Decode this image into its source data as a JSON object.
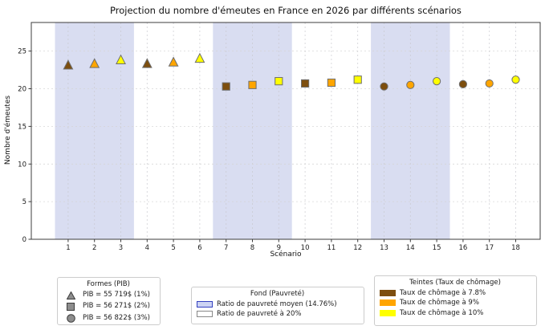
{
  "title": "Projection du nombre d'émeutes en France en 2026 par différents scénarios",
  "chart_data": {
    "type": "scatter",
    "title": "Projection du nombre d'émeutes en France en 2026 par différents scénarios",
    "xlabel": "Scénario",
    "ylabel": "Nombre d'émeutes",
    "xlim": [
      -0.4,
      18.93
    ],
    "ylim": [
      0,
      28.8
    ],
    "xticks": [
      1,
      2,
      3,
      4,
      5,
      6,
      7,
      8,
      9,
      10,
      11,
      12,
      13,
      14,
      15,
      16,
      17,
      18
    ],
    "yticks": [
      0,
      5,
      10,
      15,
      20,
      25
    ],
    "grid": true,
    "legend_position": "below-figure",
    "band_color": "#d9ddf1",
    "bands": [
      [
        0.5,
        3.5
      ],
      [
        6.5,
        9.5
      ],
      [
        12.5,
        15.5
      ]
    ],
    "tint_colors": {
      "brown": "#7d4e0e",
      "orange": "#ffa500",
      "yellow": "#ffff00"
    },
    "points": [
      {
        "x": 1,
        "y": 23.1,
        "shape": "triangle",
        "color": "#7d4e0e"
      },
      {
        "x": 2,
        "y": 23.3,
        "shape": "triangle",
        "color": "#ffa500"
      },
      {
        "x": 3,
        "y": 23.8,
        "shape": "triangle",
        "color": "#ffff00"
      },
      {
        "x": 4,
        "y": 23.3,
        "shape": "triangle",
        "color": "#7d4e0e"
      },
      {
        "x": 5,
        "y": 23.5,
        "shape": "triangle",
        "color": "#ffa500"
      },
      {
        "x": 6,
        "y": 24.0,
        "shape": "triangle",
        "color": "#ffff00"
      },
      {
        "x": 7,
        "y": 20.3,
        "shape": "square",
        "color": "#7d4e0e"
      },
      {
        "x": 8,
        "y": 20.5,
        "shape": "square",
        "color": "#ffa500"
      },
      {
        "x": 9,
        "y": 21.0,
        "shape": "square",
        "color": "#ffff00"
      },
      {
        "x": 10,
        "y": 20.7,
        "shape": "square",
        "color": "#7d4e0e"
      },
      {
        "x": 11,
        "y": 20.8,
        "shape": "square",
        "color": "#ffa500"
      },
      {
        "x": 12,
        "y": 21.2,
        "shape": "square",
        "color": "#ffff00"
      },
      {
        "x": 13,
        "y": 20.3,
        "shape": "circle",
        "color": "#7d4e0e"
      },
      {
        "x": 14,
        "y": 20.5,
        "shape": "circle",
        "color": "#ffa500"
      },
      {
        "x": 15,
        "y": 21.0,
        "shape": "circle",
        "color": "#ffff00"
      },
      {
        "x": 16,
        "y": 20.6,
        "shape": "circle",
        "color": "#7d4e0e"
      },
      {
        "x": 17,
        "y": 20.7,
        "shape": "circle",
        "color": "#ffa500"
      },
      {
        "x": 18,
        "y": 21.2,
        "shape": "circle",
        "color": "#ffff00"
      }
    ]
  },
  "legends": {
    "shapes": {
      "title": "Formes (PIB)",
      "items": [
        {
          "shape": "triangle",
          "label": "PIB = 55 719$ (1%)"
        },
        {
          "shape": "square",
          "label": "PIB = 56 271$ (2%)"
        },
        {
          "shape": "circle",
          "label": "PIB = 56 822$ (3%)"
        }
      ]
    },
    "background": {
      "title": "Fond (Pauvreté)",
      "items": [
        {
          "fill": "#ccd3f3",
          "edge": "#3340c0",
          "label": "Ratio de pauvreté moyen (14.76%)"
        },
        {
          "fill": "#ffffff",
          "edge": "#888888",
          "label": "Ratio de pauvreté à 20%"
        }
      ]
    },
    "tints": {
      "title": "Teintes (Taux de chômage)",
      "items": [
        {
          "color": "#7d4e0e",
          "label": "Taux de chômage à 7.8%"
        },
        {
          "color": "#ffa500",
          "label": "Taux de chômage à 9%"
        },
        {
          "color": "#ffff00",
          "label": "Taux de chômage à 10%"
        }
      ]
    }
  }
}
